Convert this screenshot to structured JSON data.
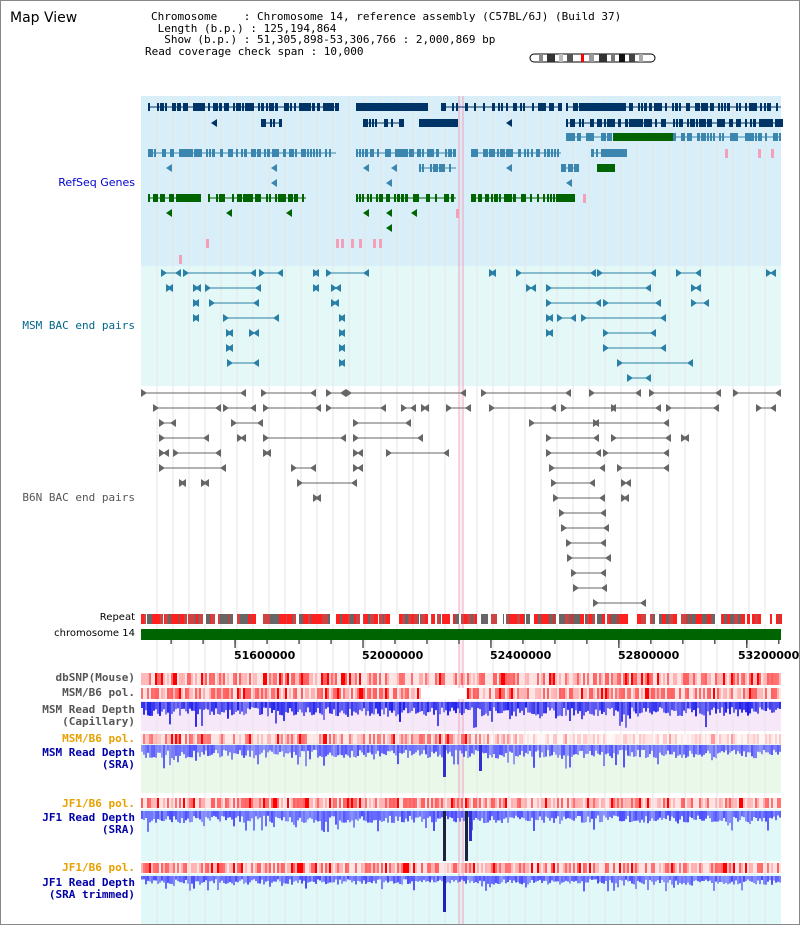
{
  "header": {
    "title": "Map View",
    "info_chromosome": "Chromosome    : Chromosome 14, reference assembly (C57BL/6J) (Build 37)",
    "info_length": " Length (b.p.) : 125,194,864",
    "info_show": "  Show (b.p.) : 51,305,898-53,306,766 : 2,000,869 bp",
    "info_span": "Read coverage check span : 10,000"
  },
  "tracks": {
    "refseq": {
      "label": "RefSeq Genes",
      "color": "#0000cc"
    },
    "msm_bac": {
      "label": "MSM BAC end pairs",
      "color": "#006688"
    },
    "b6n_bac": {
      "label": "B6N BAC end pairs",
      "color": "#555555"
    },
    "repeat": {
      "label": "Repeat"
    },
    "chrom": {
      "label": "chromosome 14"
    },
    "dbsnp": {
      "label": "dbSNP(Mouse)"
    },
    "msm_pol1": {
      "label": "MSM/B6 pol."
    },
    "msm_depth_cap_1": {
      "label": "MSM Read Depth"
    },
    "msm_depth_cap_2": {
      "label": "(Capillary)"
    },
    "msm_pol2": {
      "label": "MSM/B6 pol."
    },
    "msm_depth_sra_1": {
      "label": "MSM Read Depth"
    },
    "msm_depth_sra_2": {
      "label": "(SRA)"
    },
    "jf1_pol1": {
      "label": "JF1/B6 pol."
    },
    "jf1_depth_sra_1": {
      "label": "JF1 Read Depth"
    },
    "jf1_depth_sra_2": {
      "label": "(SRA)"
    },
    "jf1_pol2": {
      "label": "JF1/B6 pol."
    },
    "jf1_depth_trim_1": {
      "label": "JF1 Read Depth"
    },
    "jf1_depth_trim_2": {
      "label": "(SRA trimmed)"
    }
  },
  "axis": {
    "ticks": [
      "51600000",
      "52000000",
      "52400000",
      "52800000",
      "53200000"
    ],
    "range": [
      51305898,
      53306766
    ]
  },
  "colors": {
    "refseq_dark": "#003366",
    "refseq_mid": "#3a86ae",
    "refseq_green": "#006400",
    "refseq_pink": "#f4a0b8",
    "refseq_bg": "#d8eef8",
    "msm_bac_bg": "#e4f8f8",
    "chrom_green": "#006400",
    "depth_blue": "#3b3bff",
    "pol_red": "#ff3030",
    "msm_pol_color": "#e8a000",
    "jf1_pol_color": "#e8a000"
  },
  "icons": {
    "chromosome_ideogram": "chromosome-ideogram-icon"
  }
}
